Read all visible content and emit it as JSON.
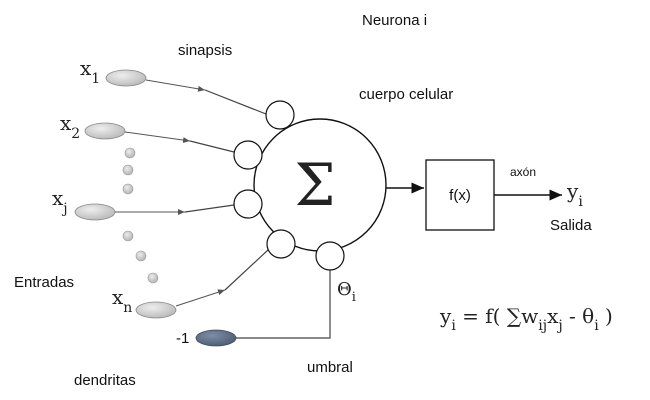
{
  "labels": {
    "neuron_title": "Neurona i",
    "synapse": "sinapsis",
    "cell_body": "cuerpo celular",
    "inputs": "Entradas",
    "dendrites": "dendritas",
    "threshold": "umbral",
    "axon": "axón",
    "output": "Salida",
    "activation_function": "f(x)",
    "sum_symbol": "Σ",
    "bias_input": "-1"
  },
  "inputs": {
    "x1": {
      "base": "x",
      "sub": "1"
    },
    "x2": {
      "base": "x",
      "sub": "2"
    },
    "xj": {
      "base": "x",
      "sub": "j"
    },
    "xn": {
      "base": "x",
      "sub": "n"
    }
  },
  "threshold_symbol": {
    "base": "Θ",
    "sub": "i"
  },
  "output_symbol": {
    "base": "y",
    "sub": "i"
  },
  "formula": {
    "lhs": "y",
    "lhs_sub": "i",
    "eq": " = f(  ∑w",
    "w_sub": "ij",
    "x": "x",
    "x_sub": "j",
    "minus": " - θ",
    "theta_sub": "i",
    "close": "  )"
  },
  "colors": {
    "input_ellipse": "#c4c4c4",
    "bias_ellipse": "#5a6d85",
    "dot": "#c8c8c8"
  }
}
